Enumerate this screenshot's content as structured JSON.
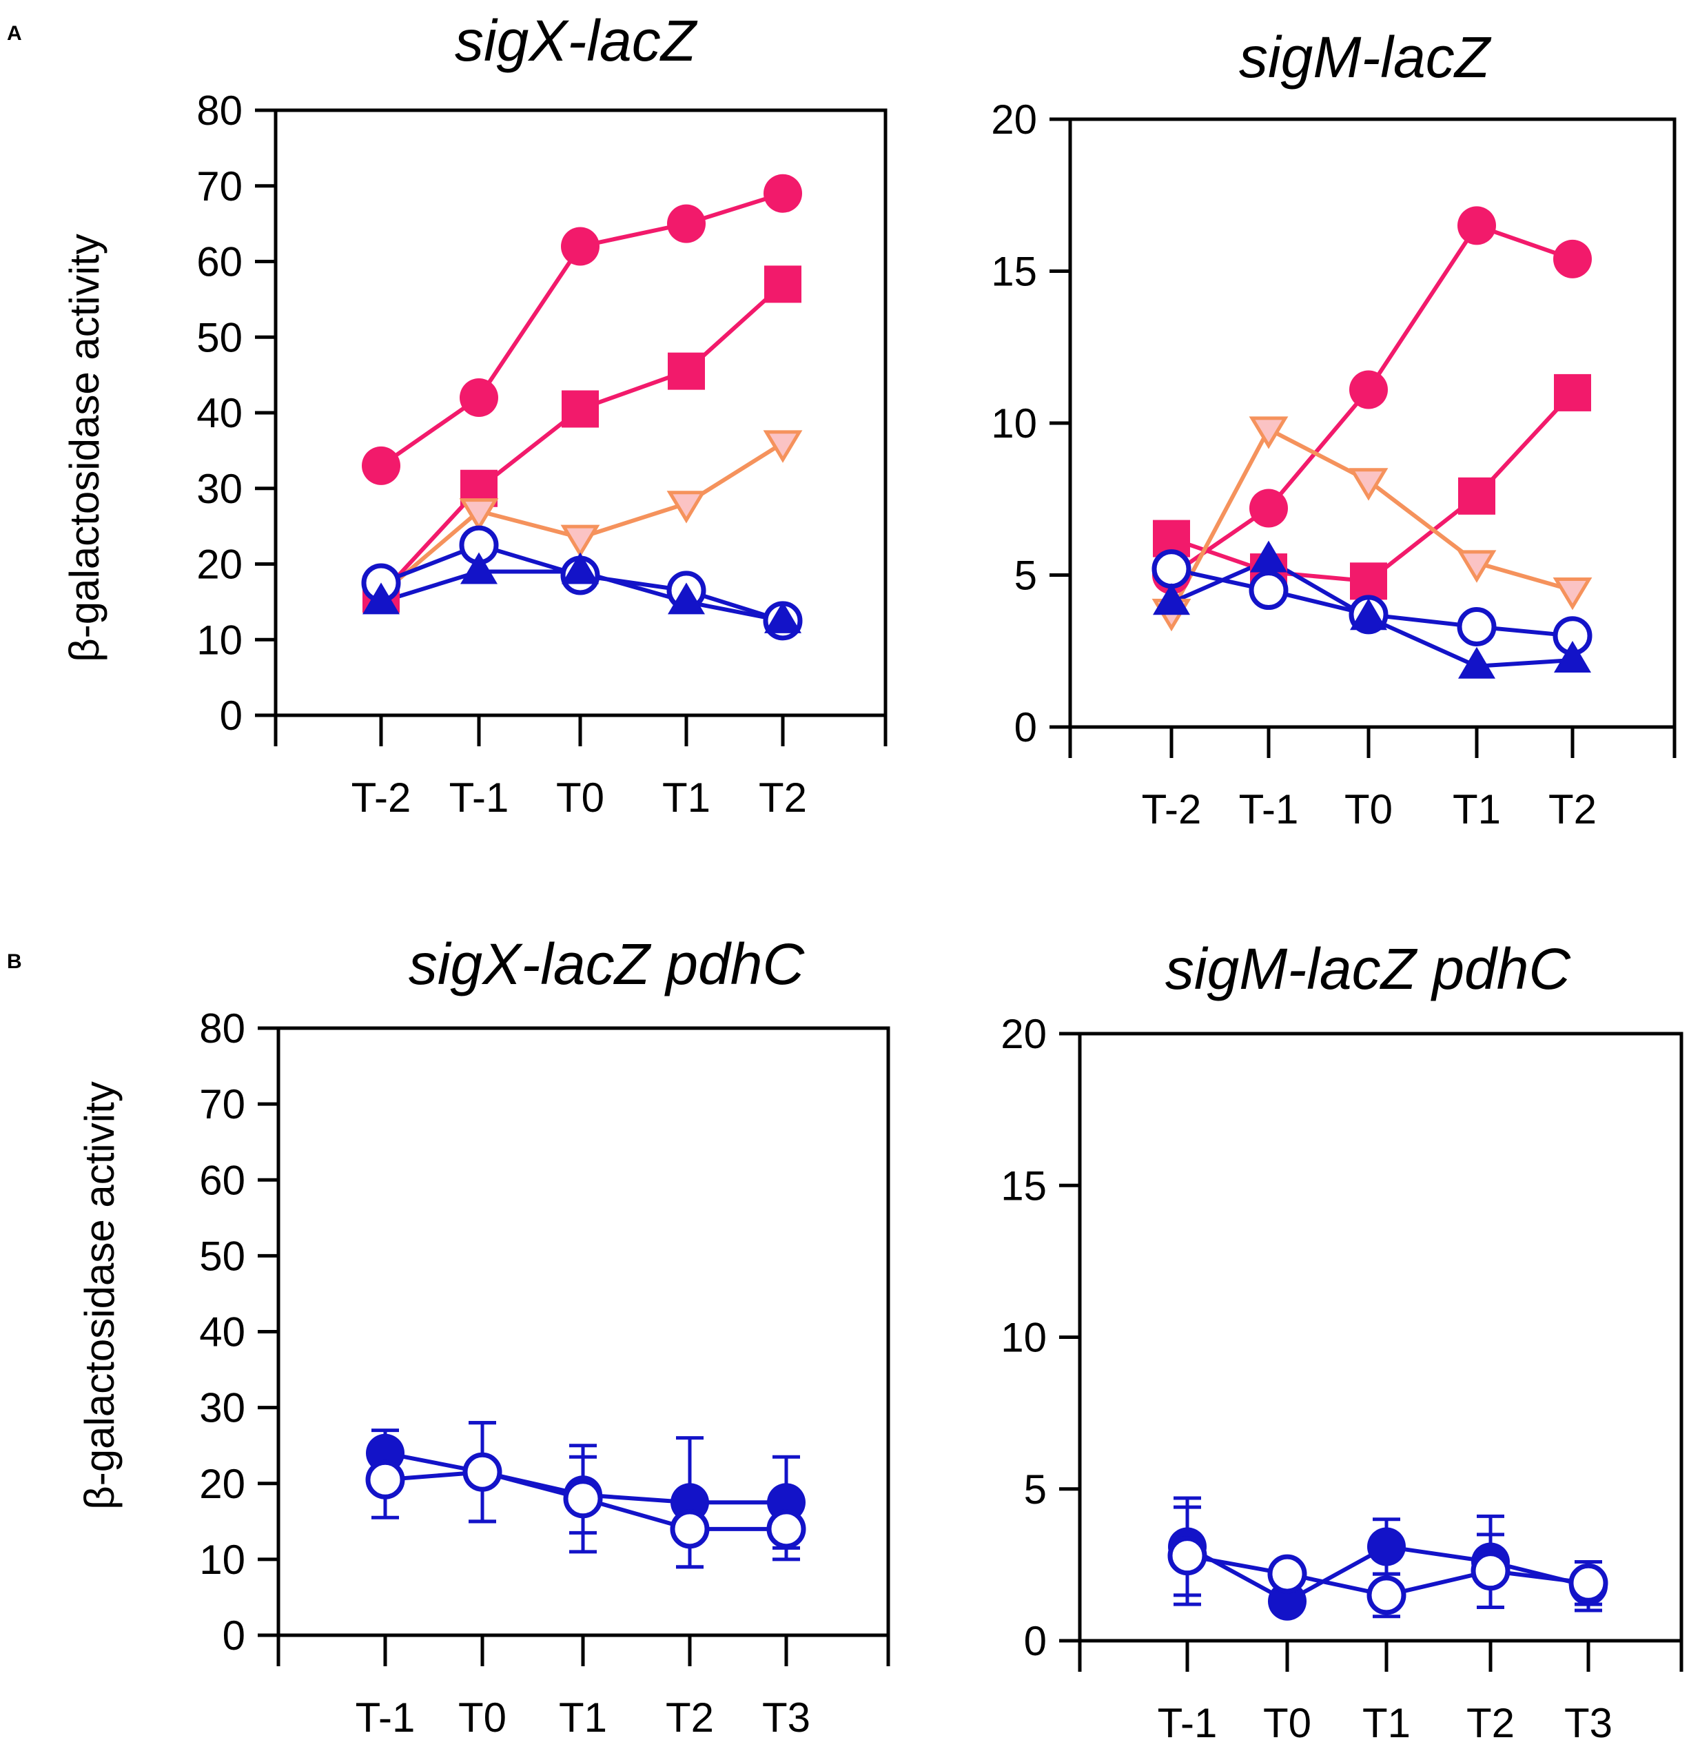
{
  "panels": [
    {
      "label": "A"
    },
    {
      "label": "B"
    }
  ],
  "colors": {
    "magenta": "#f21a6b",
    "orange": "#f5925c",
    "pink_fill": "#fbc3c4",
    "blue": "#1313c8"
  },
  "chart_data": [
    {
      "type": "line",
      "panel": "A",
      "title": "sigX-lacZ",
      "xlabel": "",
      "ylabel": "β-galactosidase activity",
      "categories": [
        "T-2",
        "T-1",
        "T0",
        "T1",
        "T2"
      ],
      "ylim": [
        0,
        80
      ],
      "yticks": [
        0,
        10,
        20,
        30,
        40,
        50,
        60,
        70,
        80
      ],
      "series": [
        {
          "name": "filled circle (magenta)",
          "marker": "circle-filled",
          "color": "#f21a6b",
          "values": [
            33,
            42,
            62,
            65,
            69
          ]
        },
        {
          "name": "filled square (magenta)",
          "marker": "square-filled",
          "color": "#f21a6b",
          "values": [
            16,
            30,
            40.5,
            45.5,
            57
          ]
        },
        {
          "name": "open triangle down (orange)",
          "marker": "triangle-down-open",
          "color": "#f5925c",
          "values": [
            16,
            27,
            23.5,
            28,
            36
          ]
        },
        {
          "name": "open circle (blue)",
          "marker": "circle-open",
          "color": "#1313c8",
          "values": [
            17.5,
            22.5,
            18.5,
            16.5,
            12.5
          ]
        },
        {
          "name": "filled triangle up (blue)",
          "marker": "triangle-up-filled",
          "color": "#1313c8",
          "values": [
            15,
            19,
            19,
            15,
            12.5
          ]
        }
      ]
    },
    {
      "type": "line",
      "panel": "A",
      "title": "sigM-lacZ",
      "xlabel": "",
      "ylabel": "",
      "categories": [
        "T-2",
        "T-1",
        "T0",
        "T1",
        "T2"
      ],
      "ylim": [
        0,
        20
      ],
      "yticks": [
        0,
        5,
        10,
        15,
        20
      ],
      "series": [
        {
          "name": "filled circle (magenta)",
          "marker": "circle-filled",
          "color": "#f21a6b",
          "values": [
            5,
            7.2,
            11.1,
            16.5,
            15.4
          ]
        },
        {
          "name": "filled square (magenta)",
          "marker": "square-filled",
          "color": "#f21a6b",
          "values": [
            6.2,
            5.1,
            4.8,
            7.6,
            11
          ]
        },
        {
          "name": "open triangle down (orange)",
          "marker": "triangle-down-open",
          "color": "#f5925c",
          "values": [
            3.8,
            9.8,
            8.1,
            5.4,
            4.5
          ]
        },
        {
          "name": "open circle (blue)",
          "marker": "circle-open",
          "color": "#1313c8",
          "values": [
            5.2,
            4.5,
            3.7,
            3.3,
            3
          ]
        },
        {
          "name": "filled triangle up (blue)",
          "marker": "triangle-up-filled",
          "color": "#1313c8",
          "values": [
            4.1,
            5.5,
            3.6,
            2,
            2.2
          ]
        }
      ]
    },
    {
      "type": "line",
      "panel": "B",
      "title": "sigX-lacZ pdhC",
      "xlabel": "",
      "ylabel": "β-galactosidase activity",
      "categories": [
        "T-1",
        "T0",
        "T1",
        "T2",
        "T3"
      ],
      "ylim": [
        0,
        80
      ],
      "yticks": [
        0,
        10,
        20,
        30,
        40,
        50,
        60,
        70,
        80
      ],
      "series": [
        {
          "name": "filled circle (blue)",
          "marker": "circle-filled",
          "color": "#1313c8",
          "values": [
            24,
            21.5,
            18.5,
            17.5,
            17.5
          ],
          "err": [
            3,
            6.5,
            5,
            8.5,
            6
          ]
        },
        {
          "name": "open circle (blue)",
          "marker": "circle-open",
          "color": "#1313c8",
          "values": [
            20.5,
            21.5,
            18,
            14,
            14
          ],
          "err": [
            5,
            6.5,
            7,
            5,
            4
          ]
        }
      ]
    },
    {
      "type": "line",
      "panel": "B",
      "title": "sigM-lacZ pdhC",
      "xlabel": "",
      "ylabel": "",
      "categories": [
        "T-1",
        "T0",
        "T1",
        "T2",
        "T3"
      ],
      "ylim": [
        0,
        20
      ],
      "yticks": [
        0,
        5,
        10,
        15,
        20
      ],
      "series": [
        {
          "name": "filled circle (blue)",
          "marker": "circle-filled",
          "color": "#1313c8",
          "values": [
            3.1,
            1.3,
            3.1,
            2.6,
            1.8
          ],
          "err": [
            1.6,
            0.3,
            0.9,
            1.5,
            0.8
          ]
        },
        {
          "name": "open circle (blue)",
          "marker": "circle-open",
          "color": "#1313c8",
          "values": [
            2.8,
            2.2,
            1.5,
            2.3,
            1.9
          ],
          "err": [
            1.6,
            0.3,
            0.7,
            1.2,
            0.7
          ]
        }
      ]
    }
  ]
}
